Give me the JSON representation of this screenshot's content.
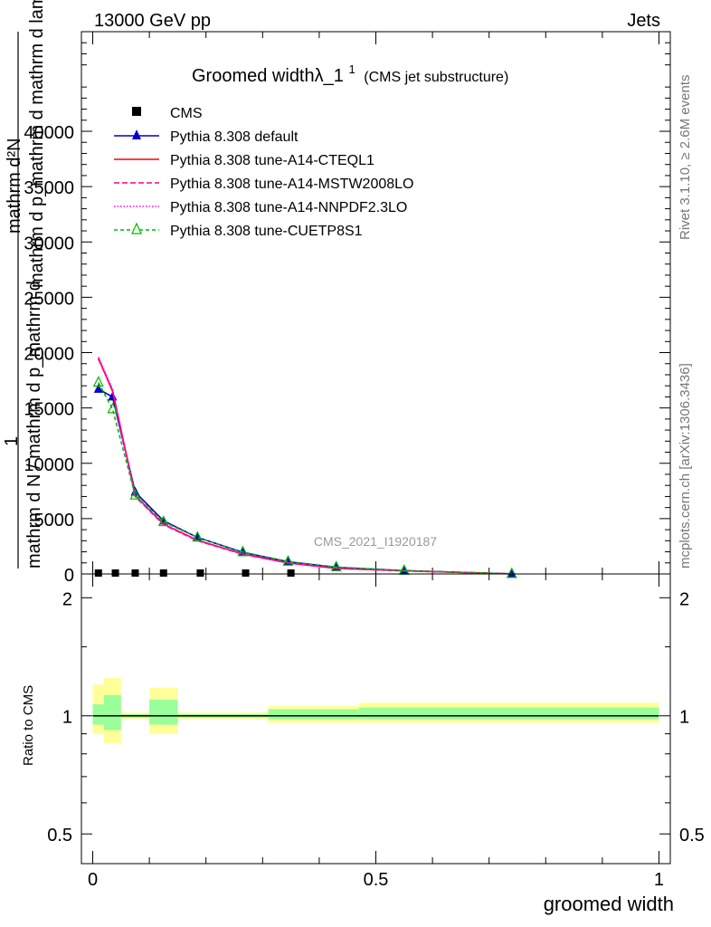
{
  "header": {
    "energy_label": "13000 GeV pp",
    "category_label": "Jets",
    "side_label_top": "Rivet 3.1.10, ≥ 2.6M events",
    "side_label_bottom": "mcplots.cern.ch [arXiv:1306.3436]",
    "watermark": "CMS_2021_I1920187"
  },
  "chart_data": [
    {
      "type": "line",
      "title": "Groomed widthλ_1",
      "title_superscript": "1",
      "subtitle": "(CMS jet substructure)",
      "ylabel_numerator": "mathrm d²N",
      "ylabel_numerator_extra": "mathrm d p_mathrm d mathrm d lambda",
      "ylabel_one": "1",
      "ylabel_denominator": "mathrm d N / mathrm d p_mathrm d",
      "xlim": [
        -0.02,
        1.02
      ],
      "ylim": [
        0,
        49000
      ],
      "yticks": [
        0,
        5000,
        10000,
        15000,
        20000,
        25000,
        30000,
        35000,
        40000
      ],
      "ytick_labels": [
        "0",
        "5000",
        "10000",
        "15000",
        "20000",
        "25000",
        "30000",
        "35000",
        "40000"
      ],
      "legend_position": "top-left",
      "series": [
        {
          "name": "CMS",
          "color": "#000000",
          "marker": "square",
          "x": [
            0.01,
            0.04,
            0.075,
            0.125,
            0.19,
            0.27,
            0.35
          ],
          "y": [
            0,
            0,
            0,
            0,
            0,
            0,
            0
          ]
        },
        {
          "name": "Pythia 8.308 default",
          "color": "#0000cc",
          "marker": "triangle",
          "dash": "",
          "x": [
            0.01,
            0.035,
            0.075,
            0.125,
            0.185,
            0.265,
            0.345,
            0.43,
            0.55,
            0.74
          ],
          "y": [
            16700,
            16000,
            7400,
            4800,
            3300,
            1950,
            1100,
            600,
            300,
            10
          ]
        },
        {
          "name": "Pythia 8.308 tune-A14-CTEQL1",
          "color": "#ff0000",
          "marker": "none",
          "dash": "",
          "x": [
            0.01,
            0.035,
            0.075,
            0.125,
            0.185,
            0.265,
            0.345,
            0.43,
            0.55,
            0.74
          ],
          "y": [
            19500,
            16500,
            7100,
            4500,
            3050,
            1800,
            1000,
            500,
            280,
            10
          ]
        },
        {
          "name": "Pythia 8.308 tune-A14-MSTW2008LO",
          "color": "#ff0080",
          "marker": "none",
          "dash": "6,3",
          "x": [
            0.01,
            0.035,
            0.075,
            0.125,
            0.185,
            0.265,
            0.345,
            0.43,
            0.55,
            0.74
          ],
          "y": [
            19400,
            16600,
            7000,
            4450,
            3000,
            1780,
            990,
            500,
            280,
            10
          ]
        },
        {
          "name": "Pythia 8.308 tune-A14-NNPDF2.3LO",
          "color": "#ff00ff",
          "marker": "none",
          "dash": "1.5,2",
          "x": [
            0.01,
            0.035,
            0.075,
            0.125,
            0.185,
            0.265,
            0.345,
            0.43,
            0.55,
            0.74
          ],
          "y": [
            19600,
            16700,
            7050,
            4500,
            3050,
            1800,
            1000,
            500,
            280,
            10
          ]
        },
        {
          "name": "Pythia 8.308 tune-CUETP8S1",
          "color": "#00bb00",
          "marker": "triangle-open",
          "dash": "4,3",
          "x": [
            0.01,
            0.035,
            0.075,
            0.125,
            0.185,
            0.265,
            0.345,
            0.43,
            0.55,
            0.74
          ],
          "y": [
            17300,
            14900,
            7100,
            4700,
            3300,
            1980,
            1120,
            620,
            300,
            10
          ]
        }
      ]
    },
    {
      "type": "line",
      "ylabel": "Ratio to CMS",
      "xlabel": "groomed width",
      "xlim": [
        -0.02,
        1.02
      ],
      "ylim": [
        0.42,
        2.3
      ],
      "log_scale_y": true,
      "yticks": [
        0.5,
        1,
        2
      ],
      "ytick_labels": [
        "0.5",
        "1",
        "2"
      ],
      "xticks": [
        0,
        0.5,
        1
      ],
      "xtick_labels": [
        "0",
        "0.5",
        "1"
      ],
      "reference_line": 1,
      "bands": [
        {
          "x0": 0.0,
          "x1": 0.02,
          "inner": [
            0.95,
            1.07
          ],
          "outer": [
            0.9,
            1.2
          ]
        },
        {
          "x0": 0.02,
          "x1": 0.05,
          "inner": [
            0.92,
            1.13
          ],
          "outer": [
            0.85,
            1.25
          ]
        },
        {
          "x0": 0.05,
          "x1": 0.1,
          "inner": [
            0.99,
            1.01
          ],
          "outer": [
            0.98,
            1.02
          ]
        },
        {
          "x0": 0.1,
          "x1": 0.15,
          "inner": [
            0.95,
            1.1
          ],
          "outer": [
            0.9,
            1.18
          ]
        },
        {
          "x0": 0.15,
          "x1": 0.31,
          "inner": [
            0.99,
            1.01
          ],
          "outer": [
            0.98,
            1.02
          ]
        },
        {
          "x0": 0.31,
          "x1": 0.47,
          "inner": [
            0.98,
            1.04
          ],
          "outer": [
            0.96,
            1.06
          ]
        },
        {
          "x0": 0.47,
          "x1": 1.0,
          "inner": [
            0.98,
            1.05
          ],
          "outer": [
            0.96,
            1.08
          ]
        }
      ],
      "band_colors": {
        "inner": "#99ff99",
        "outer": "#ffff99"
      },
      "series_color": "#00bb00"
    }
  ]
}
